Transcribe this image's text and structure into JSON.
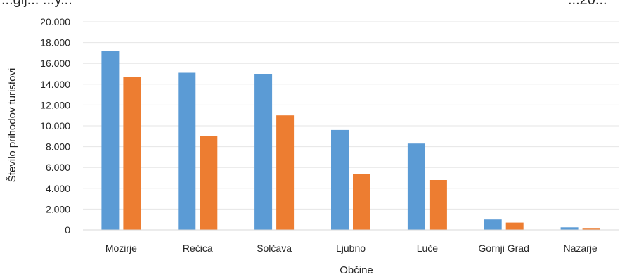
{
  "chart_data": {
    "type": "bar",
    "title_partial_left": "...gij... ...y...",
    "title_partial_right": "...20...",
    "xlabel": "Občine",
    "ylabel": "Število prihodov turistovi",
    "ylim": [
      0,
      20000
    ],
    "yticks": [
      "0",
      "2.000",
      "4.000",
      "6.000",
      "8.000",
      "10.000",
      "12.000",
      "14.000",
      "16.000",
      "18.000",
      "20.000"
    ],
    "categories": [
      "Mozirje",
      "Rečica",
      "Solčava",
      "Ljubno",
      "Luče",
      "Gornji Grad",
      "Nazarje"
    ],
    "series": [
      {
        "color": "#5B9BD5",
        "values": [
          17200,
          15100,
          15000,
          9600,
          8300,
          1000,
          250
        ]
      },
      {
        "color": "#ED7D31",
        "values": [
          14700,
          9000,
          11000,
          5400,
          4800,
          700,
          120
        ]
      }
    ],
    "grid": true
  }
}
